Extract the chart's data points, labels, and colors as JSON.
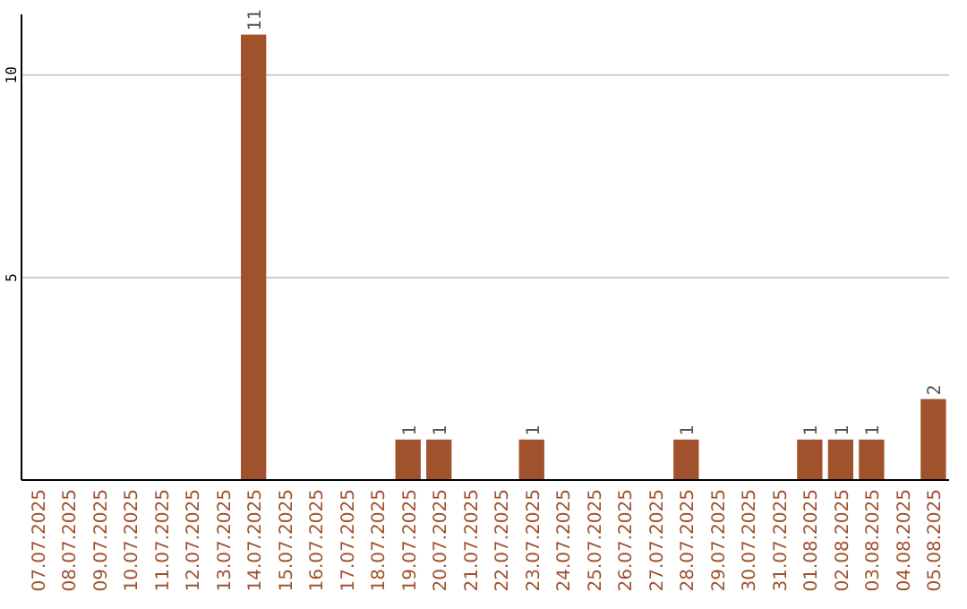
{
  "chart_data": {
    "type": "bar",
    "categories": [
      "07.07.2025",
      "08.07.2025",
      "09.07.2025",
      "10.07.2025",
      "11.07.2025",
      "12.07.2025",
      "13.07.2025",
      "14.07.2025",
      "15.07.2025",
      "16.07.2025",
      "17.07.2025",
      "18.07.2025",
      "19.07.2025",
      "20.07.2025",
      "21.07.2025",
      "22.07.2025",
      "23.07.2025",
      "24.07.2025",
      "25.07.2025",
      "26.07.2025",
      "27.07.2025",
      "28.07.2025",
      "29.07.2025",
      "30.07.2025",
      "31.07.2025",
      "01.08.2025",
      "02.08.2025",
      "03.08.2025",
      "04.08.2025",
      "05.08.2025"
    ],
    "values": [
      0,
      0,
      0,
      0,
      0,
      0,
      0,
      11,
      0,
      0,
      0,
      0,
      1,
      1,
      0,
      0,
      1,
      0,
      0,
      0,
      0,
      1,
      0,
      0,
      0,
      1,
      1,
      1,
      0,
      2
    ],
    "value_labels": [
      null,
      null,
      null,
      null,
      null,
      null,
      null,
      "11",
      null,
      null,
      null,
      null,
      "1",
      "1",
      null,
      null,
      "1",
      null,
      null,
      null,
      null,
      "1",
      null,
      null,
      null,
      "1",
      "1",
      "1",
      null,
      "2"
    ],
    "color": "#a0522d",
    "ylim": [
      0,
      11.5
    ],
    "yticks": [
      5,
      10
    ],
    "grid": "y"
  }
}
